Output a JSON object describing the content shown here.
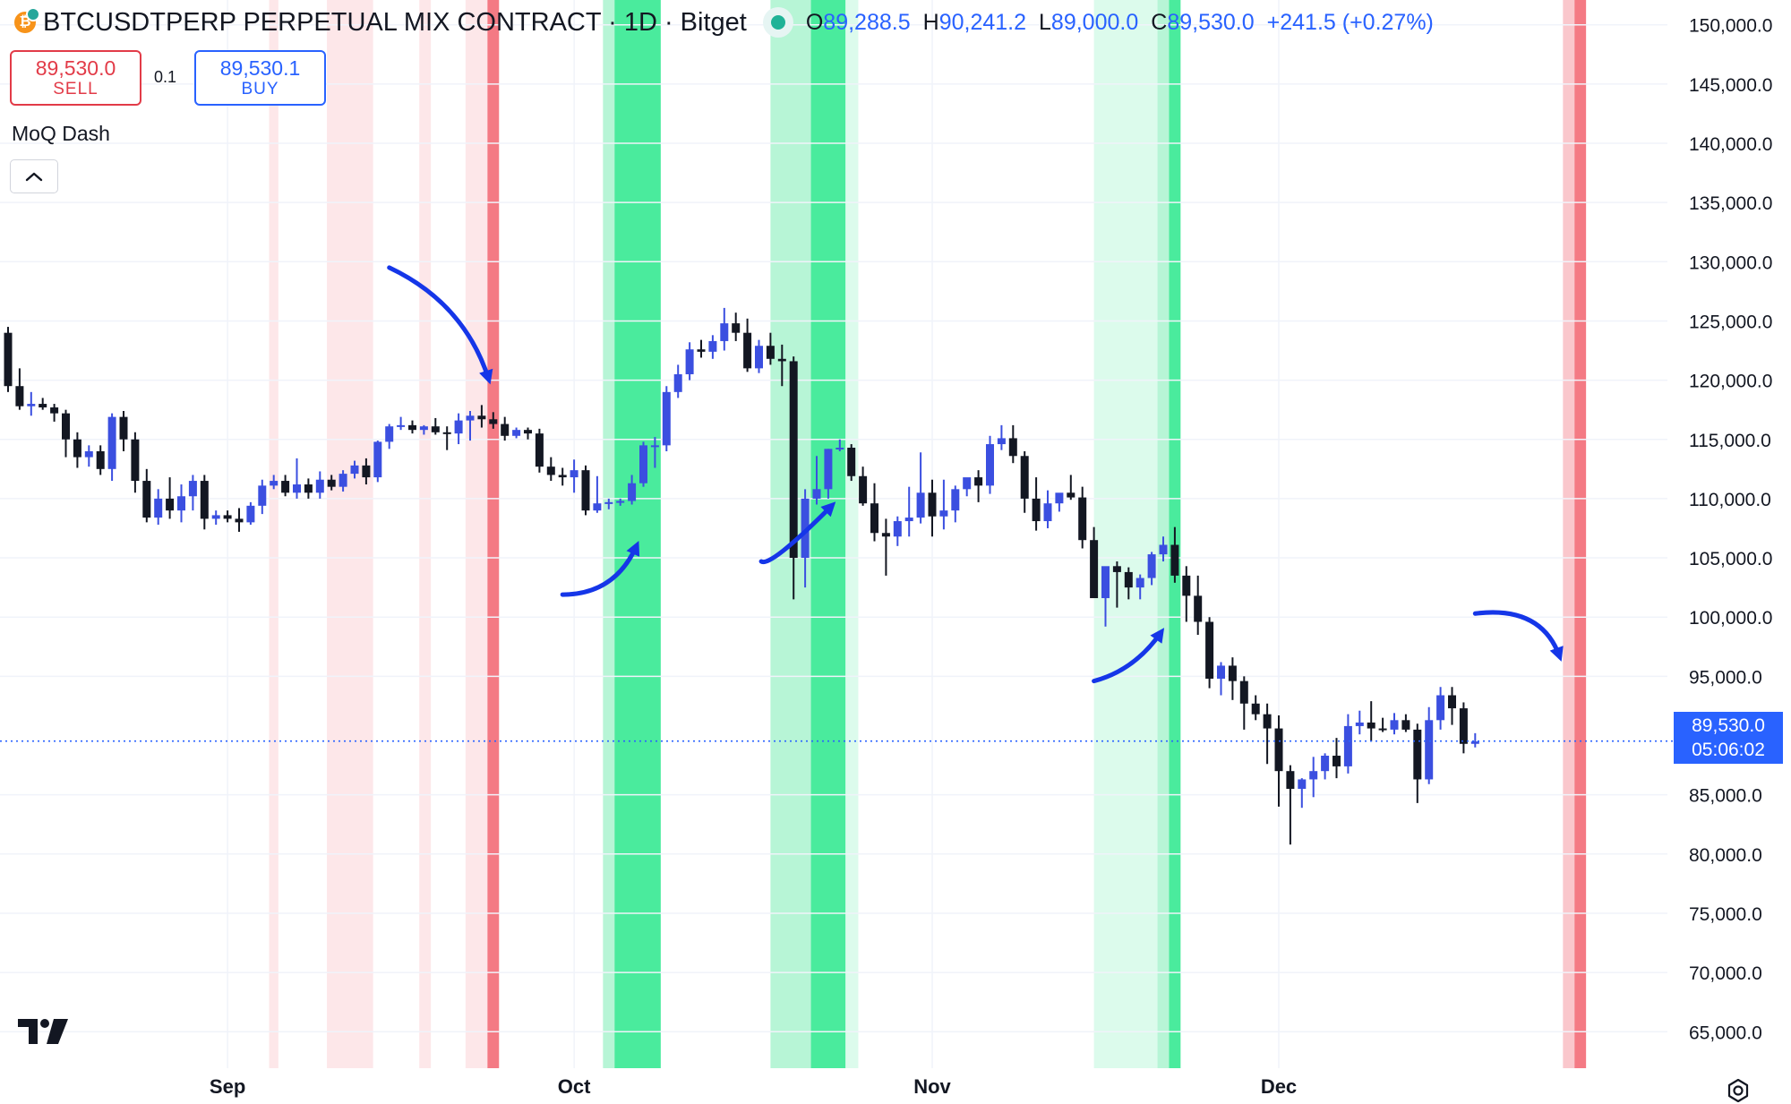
{
  "header": {
    "coin_icon_glyph": "₿",
    "symbol": "BTCUSDTPERP PERPETUAL MIX CONTRACT · 1D · Bitget",
    "ohlc": {
      "o_label": "O",
      "o_value": "89,288.5",
      "h_label": "H",
      "h_value": "90,241.2",
      "l_label": "L",
      "l_value": "89,000.0",
      "c_label": "C",
      "c_value": "89,530.0",
      "change": "+241.5 (+0.27%)"
    }
  },
  "trading": {
    "sell_price": "89,530.0",
    "sell_label": "SELL",
    "quantity": "0.1",
    "buy_price": "89,530.1",
    "buy_label": "BUY"
  },
  "indicator": {
    "name": "MoQ Dash",
    "collapse_icon": "chevron-up-icon"
  },
  "last_price": {
    "price": "89,530.0",
    "countdown": "05:06:02"
  },
  "colors": {
    "bull": "#3b4fe0",
    "bear": "#131722",
    "accent": "#2962ff",
    "green_strong": "#4aeb9d",
    "green_light": "#dcfbec",
    "green_mid": "#b7f5d6",
    "red_strong": "#f47a84",
    "red_light": "#fde7e9",
    "red_mid": "#fac7cc",
    "arrow": "#1536e8"
  },
  "icons": [
    "bitcoin-icon",
    "market-status-icon",
    "chevron-up-icon",
    "tradingview-logo-icon",
    "settings-icon",
    "arrow-icon"
  ],
  "chart_data": {
    "type": "candlestick",
    "title": "BTCUSDTPERP PERPETUAL MIX CONTRACT · 1D · Bitget",
    "y_axis": {
      "side": "right",
      "ylim": [
        60000,
        151000
      ],
      "ticks": [
        150000,
        145000,
        140000,
        135000,
        130000,
        125000,
        120000,
        115000,
        110000,
        105000,
        100000,
        95000,
        85000,
        80000,
        75000,
        70000,
        65000
      ],
      "tick_labels": [
        "150,000.0",
        "145,000.0",
        "140,000.0",
        "135,000.0",
        "130,000.0",
        "125,000.0",
        "120,000.0",
        "115,000.0",
        "110,000.0",
        "105,000.0",
        "100,000.0",
        "95,000.0",
        "85,000.0",
        "80,000.0",
        "75,000.0",
        "70,000.0",
        "65,000.0"
      ]
    },
    "x_axis": {
      "start_date": "2025-08-13",
      "labels": [
        {
          "label": "Sep",
          "date": "2025-09-01"
        },
        {
          "label": "Oct",
          "date": "2025-10-01"
        },
        {
          "label": "Nov",
          "date": "2025-11-01"
        },
        {
          "label": "Dec",
          "date": "2025-12-01"
        }
      ]
    },
    "grid": true,
    "last_price_line": 89530,
    "ohlc": [
      [
        124000,
        124500,
        119000,
        119500
      ],
      [
        119500,
        121000,
        117500,
        117800
      ],
      [
        117800,
        119000,
        117000,
        118000
      ],
      [
        118000,
        118500,
        117500,
        117700
      ],
      [
        117700,
        118000,
        116500,
        117200
      ],
      [
        117200,
        117500,
        113500,
        115000
      ],
      [
        115000,
        115600,
        112600,
        113500
      ],
      [
        113500,
        114500,
        112700,
        114000
      ],
      [
        114000,
        114500,
        112000,
        112500
      ],
      [
        112500,
        117200,
        111500,
        116900
      ],
      [
        116900,
        117400,
        114000,
        115000
      ],
      [
        115000,
        115600,
        110500,
        111500
      ],
      [
        111500,
        112500,
        108000,
        108400
      ],
      [
        108400,
        110800,
        107800,
        110000
      ],
      [
        110000,
        111800,
        108300,
        109000
      ],
      [
        109000,
        111200,
        108000,
        110200
      ],
      [
        110200,
        112000,
        109000,
        111500
      ],
      [
        111500,
        112000,
        107400,
        108300
      ],
      [
        108300,
        109000,
        107800,
        108600
      ],
      [
        108600,
        109000,
        108000,
        108300
      ],
      [
        108300,
        109200,
        107200,
        108000
      ],
      [
        108000,
        109700,
        107800,
        109400
      ],
      [
        109400,
        111600,
        108700,
        111100
      ],
      [
        111100,
        112000,
        110800,
        111500
      ],
      [
        111500,
        112000,
        110200,
        110500
      ],
      [
        110500,
        113400,
        110000,
        111200
      ],
      [
        111200,
        111700,
        110000,
        110500
      ],
      [
        110500,
        112300,
        110000,
        111600
      ],
      [
        111600,
        112000,
        110700,
        111000
      ],
      [
        111000,
        112400,
        110600,
        112100
      ],
      [
        112100,
        113200,
        111700,
        112800
      ],
      [
        112800,
        113400,
        111200,
        111800
      ],
      [
        111800,
        114900,
        111400,
        114800
      ],
      [
        114800,
        116300,
        114200,
        116100
      ],
      [
        116100,
        116900,
        115800,
        116200
      ],
      [
        116200,
        116600,
        115500,
        115800
      ],
      [
        115800,
        116200,
        115400,
        116100
      ],
      [
        116100,
        116800,
        115400,
        115600
      ],
      [
        115600,
        116100,
        114100,
        115500
      ],
      [
        115500,
        117200,
        114600,
        116600
      ],
      [
        116600,
        117400,
        114900,
        117000
      ],
      [
        117000,
        117900,
        116000,
        116700
      ],
      [
        116700,
        117300,
        115900,
        116300
      ],
      [
        116300,
        116900,
        114900,
        115300
      ],
      [
        115300,
        116000,
        115100,
        115800
      ],
      [
        115800,
        116000,
        115000,
        115500
      ],
      [
        115500,
        115900,
        112200,
        112700
      ],
      [
        112700,
        113500,
        111500,
        112000
      ],
      [
        112000,
        112600,
        111100,
        111800
      ],
      [
        111800,
        113300,
        110500,
        112400
      ],
      [
        112400,
        112800,
        108600,
        109000
      ],
      [
        109000,
        111900,
        108800,
        109600
      ],
      [
        109600,
        110000,
        109100,
        109700
      ],
      [
        109700,
        110000,
        109400,
        109800
      ],
      [
        109800,
        112000,
        109500,
        111300
      ],
      [
        111300,
        114800,
        111000,
        114500
      ],
      [
        114500,
        115200,
        112600,
        114500
      ],
      [
        114500,
        119500,
        114000,
        119000
      ],
      [
        119000,
        121300,
        118500,
        120500
      ],
      [
        120500,
        123200,
        120000,
        122600
      ],
      [
        122600,
        123400,
        121900,
        122400
      ],
      [
        122400,
        123800,
        121800,
        123300
      ],
      [
        123300,
        126100,
        122500,
        124800
      ],
      [
        124800,
        125700,
        123300,
        124000
      ],
      [
        124000,
        125200,
        120700,
        121000
      ],
      [
        121000,
        123400,
        120600,
        122900
      ],
      [
        122900,
        124000,
        121300,
        121800
      ],
      [
        121800,
        123000,
        119500,
        121600
      ],
      [
        121600,
        122000,
        101500,
        105000
      ],
      [
        105000,
        110800,
        102500,
        110000
      ],
      [
        110000,
        113600,
        109500,
        110800
      ],
      [
        110800,
        114200,
        110000,
        114200
      ],
      [
        114200,
        115000,
        114000,
        114300
      ],
      [
        114300,
        114600,
        111500,
        111900
      ],
      [
        111900,
        112700,
        109400,
        109600
      ],
      [
        109600,
        111300,
        106400,
        107100
      ],
      [
        107100,
        108300,
        103500,
        106800
      ],
      [
        106800,
        108500,
        106000,
        108100
      ],
      [
        108100,
        111000,
        106800,
        108400
      ],
      [
        108400,
        113900,
        107900,
        110500
      ],
      [
        110500,
        111600,
        106800,
        108500
      ],
      [
        108500,
        111600,
        107400,
        109000
      ],
      [
        109000,
        111100,
        108000,
        110800
      ],
      [
        110800,
        111500,
        110200,
        111800
      ],
      [
        111800,
        112400,
        109700,
        111100
      ],
      [
        111100,
        115300,
        110400,
        114600
      ],
      [
        114600,
        116200,
        114100,
        115100
      ],
      [
        115100,
        116200,
        113000,
        113600
      ],
      [
        113600,
        114000,
        108800,
        110000
      ],
      [
        110000,
        111800,
        107300,
        108100
      ],
      [
        108100,
        110700,
        107500,
        109600
      ],
      [
        109600,
        110400,
        108900,
        110500
      ],
      [
        110500,
        112000,
        109900,
        110100
      ],
      [
        110100,
        111000,
        105800,
        106500
      ],
      [
        106500,
        107600,
        101800,
        101600
      ],
      [
        101600,
        104100,
        99200,
        104300
      ],
      [
        104300,
        104700,
        100800,
        103800
      ],
      [
        103800,
        104200,
        101500,
        102500
      ],
      [
        102500,
        103600,
        101500,
        103300
      ],
      [
        103300,
        105500,
        102700,
        105300
      ],
      [
        105300,
        106800,
        104700,
        106100
      ],
      [
        106100,
        107600,
        102900,
        103500
      ],
      [
        103500,
        104300,
        99600,
        101800
      ],
      [
        101800,
        103500,
        98500,
        99600
      ],
      [
        99600,
        100000,
        94000,
        94800
      ],
      [
        94800,
        96200,
        93400,
        95900
      ],
      [
        95900,
        96600,
        93000,
        94600
      ],
      [
        94600,
        95000,
        90500,
        92700
      ],
      [
        92700,
        93400,
        91300,
        91800
      ],
      [
        91800,
        92700,
        87600,
        90600
      ],
      [
        90600,
        91700,
        84000,
        87000
      ],
      [
        87000,
        87500,
        80800,
        85500
      ],
      [
        85500,
        86400,
        83900,
        86300
      ],
      [
        86300,
        88200,
        84800,
        87000
      ],
      [
        87000,
        88500,
        86300,
        88300
      ],
      [
        88300,
        89800,
        86400,
        87400
      ],
      [
        87400,
        91800,
        86800,
        90800
      ],
      [
        90800,
        92100,
        90100,
        91100
      ],
      [
        91100,
        92900,
        89500,
        90600
      ],
      [
        90600,
        91500,
        90300,
        90500
      ],
      [
        90500,
        91900,
        90100,
        91300
      ],
      [
        91300,
        91800,
        90300,
        90500
      ],
      [
        90500,
        91000,
        84300,
        86300
      ],
      [
        86300,
        92400,
        85900,
        91300
      ],
      [
        91300,
        94100,
        90500,
        93400
      ],
      [
        93400,
        94100,
        90900,
        92300
      ],
      [
        92300,
        92800,
        88500,
        89300
      ],
      [
        89300,
        90200,
        89000,
        89500
      ]
    ],
    "highlight_bands": [
      {
        "start_day": 22.6,
        "end_day": 23.4,
        "color": "red_light"
      },
      {
        "start_day": 27.6,
        "end_day": 31.6,
        "color": "red_light"
      },
      {
        "start_day": 35.6,
        "end_day": 36.6,
        "color": "red_light"
      },
      {
        "start_day": 39.6,
        "end_day": 41.5,
        "color": "red_light"
      },
      {
        "start_day": 41.5,
        "end_day": 42.5,
        "color": "red_strong"
      },
      {
        "start_day": 51.5,
        "end_day": 52.5,
        "color": "green_mid"
      },
      {
        "start_day": 52.5,
        "end_day": 56.5,
        "color": "green_strong"
      },
      {
        "start_day": 66.0,
        "end_day": 69.5,
        "color": "green_mid"
      },
      {
        "start_day": 69.5,
        "end_day": 72.5,
        "color": "green_strong"
      },
      {
        "start_day": 72.5,
        "end_day": 73.6,
        "color": "green_light"
      },
      {
        "start_day": 94.0,
        "end_day": 99.5,
        "color": "green_light"
      },
      {
        "start_day": 99.5,
        "end_day": 100.5,
        "color": "green_mid"
      },
      {
        "start_day": 100.5,
        "end_day": 101.5,
        "color": "green_strong"
      },
      {
        "start_day": 134.6,
        "end_day": 135.6,
        "color": "red_mid"
      },
      {
        "start_day": 135.6,
        "end_day": 136.6,
        "color": "red_strong"
      }
    ],
    "annotation_arrows": [
      {
        "from_day": 33.0,
        "from_price": 129500,
        "ctrl_day": 39.5,
        "ctrl_price": 126500,
        "to_day": 41.6,
        "to_price": 120100,
        "direction": "down"
      },
      {
        "from_day": 48.0,
        "from_price": 101900,
        "ctrl_day": 52.5,
        "ctrl_price": 101900,
        "to_day": 54.4,
        "to_price": 106000,
        "direction": "up"
      },
      {
        "from_day": 65.2,
        "from_price": 104700,
        "ctrl_day": 66.0,
        "ctrl_price": 104200,
        "to_day": 71.3,
        "to_price": 109400,
        "direction": "up"
      },
      {
        "from_day": 94.0,
        "from_price": 94600,
        "ctrl_day": 97.5,
        "ctrl_price": 95500,
        "to_day": 99.8,
        "to_price": 98700,
        "direction": "up"
      },
      {
        "from_day": 127.0,
        "from_price": 100300,
        "ctrl_day": 132.7,
        "ctrl_price": 101000,
        "to_day": 134.3,
        "to_price": 96700,
        "direction": "down"
      }
    ]
  }
}
